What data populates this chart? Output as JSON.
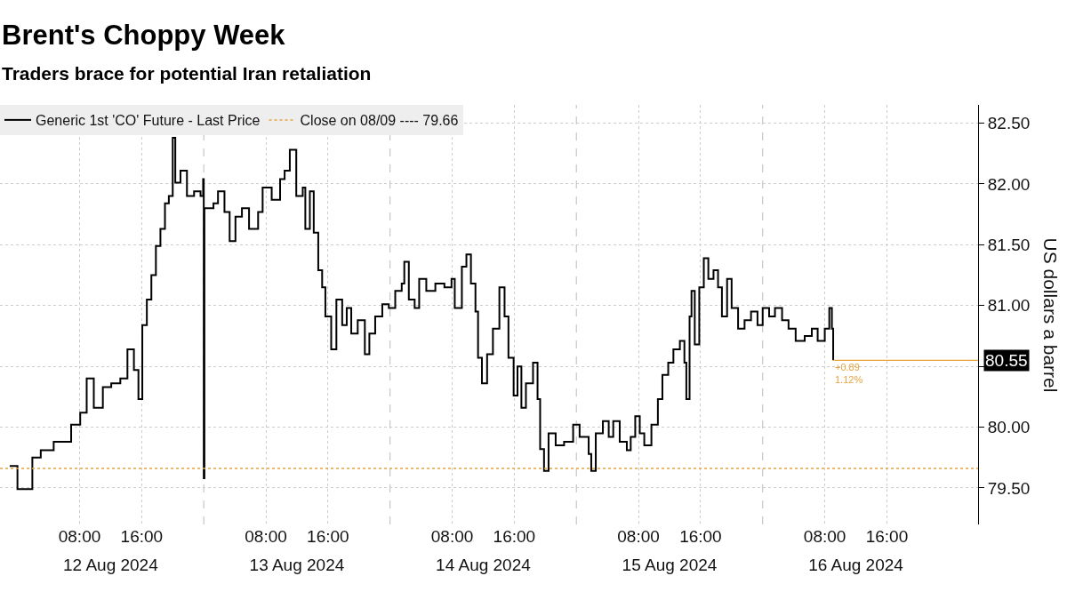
{
  "chart_data": {
    "type": "step",
    "title": "Brent's Choppy Week",
    "subtitle": "Traders brace for potential Iran retaliation",
    "ylabel": "US dollars a barrel",
    "xlim": [
      "2024-08-11T21:45",
      "2024-08-17T03:45"
    ],
    "xticks": [
      {
        "value": "2024-08-12T08:00",
        "label": "08:00"
      },
      {
        "value": "2024-08-12T16:00",
        "label": "16:00"
      },
      {
        "value": "2024-08-13T08:00",
        "label": "08:00"
      },
      {
        "value": "2024-08-13T16:00",
        "label": "16:00"
      },
      {
        "value": "2024-08-14T08:00",
        "label": "08:00"
      },
      {
        "value": "2024-08-14T16:00",
        "label": "16:00"
      },
      {
        "value": "2024-08-15T08:00",
        "label": "08:00"
      },
      {
        "value": "2024-08-15T16:00",
        "label": "16:00"
      },
      {
        "value": "2024-08-16T08:00",
        "label": "08:00"
      },
      {
        "value": "2024-08-16T16:00",
        "label": "16:00"
      }
    ],
    "x2lim": [
      "2024-08-11T21:45",
      "2024-08-17T03:45"
    ],
    "x2ticks": [
      {
        "value": "2024-08-12T12:00",
        "label": "12 Aug 2024"
      },
      {
        "value": "2024-08-13T12:00",
        "label": "13 Aug 2024"
      },
      {
        "value": "2024-08-14T12:00",
        "label": "14 Aug 2024"
      },
      {
        "value": "2024-08-15T12:00",
        "label": "15 Aug 2024"
      },
      {
        "value": "2024-08-16T12:00",
        "label": "16 Aug 2024"
      }
    ],
    "ylim": [
      79.2,
      82.65
    ],
    "yticks": [
      {
        "value": 79.5,
        "label": "79.50"
      },
      {
        "value": 80.0,
        "label": "80.00"
      },
      {
        "value": 80.5,
        "label": null
      },
      {
        "value": 81.0,
        "label": "81.00"
      },
      {
        "value": 81.5,
        "label": "81.50"
      },
      {
        "value": 82.0,
        "label": "82.00"
      },
      {
        "value": 82.5,
        "label": "82.50"
      }
    ],
    "grid": true,
    "legend": "top left",
    "series": [
      {
        "name": "Generic 1st 'CO' Future - Last Price",
        "color": "#000000",
        "x": [
          "2024-08-11T23:00",
          "2024-08-12T00:00",
          "2024-08-12T01:55",
          "2024-08-12T03:00",
          "2024-08-12T04:40",
          "2024-08-12T06:55",
          "2024-08-12T08:05",
          "2024-08-12T08:55",
          "2024-08-12T09:50",
          "2024-08-12T11:00",
          "2024-08-12T12:05",
          "2024-08-12T13:15",
          "2024-08-12T14:10",
          "2024-08-12T15:00",
          "2024-08-12T15:35",
          "2024-08-12T16:05",
          "2024-08-12T16:40",
          "2024-08-12T17:15",
          "2024-08-12T17:50",
          "2024-08-12T18:25",
          "2024-08-12T19:00",
          "2024-08-12T19:30",
          "2024-08-12T20:00",
          "2024-08-12T20:20",
          "2024-08-12T21:00",
          "2024-08-12T21:50",
          "2024-08-12T22:45",
          "2024-08-12T23:35",
          "2024-08-12T23:55",
          "2024-08-13T00:00",
          "2024-08-13T00:05",
          "2024-08-13T01:15",
          "2024-08-13T01:50",
          "2024-08-13T02:40",
          "2024-08-13T03:20",
          "2024-08-13T04:05",
          "2024-08-13T04:55",
          "2024-08-13T05:50",
          "2024-08-13T07:00",
          "2024-08-13T07:35",
          "2024-08-13T08:45",
          "2024-08-13T09:50",
          "2024-08-13T10:25",
          "2024-08-13T11:05",
          "2024-08-13T11:55",
          "2024-08-13T12:45",
          "2024-08-13T13:05",
          "2024-08-13T13:40",
          "2024-08-13T14:10",
          "2024-08-13T14:45",
          "2024-08-13T15:15",
          "2024-08-13T15:40",
          "2024-08-13T16:25",
          "2024-08-13T17:05",
          "2024-08-13T17:50",
          "2024-08-13T18:25",
          "2024-08-13T19:00",
          "2024-08-13T19:50",
          "2024-08-13T20:45",
          "2024-08-13T21:20",
          "2024-08-13T22:05",
          "2024-08-13T23:00",
          "2024-08-13T23:50",
          "2024-08-14T00:40",
          "2024-08-14T01:30",
          "2024-08-14T01:50",
          "2024-08-14T02:25",
          "2024-08-14T03:10",
          "2024-08-14T03:45",
          "2024-08-14T04:40",
          "2024-08-14T05:50",
          "2024-08-14T07:00",
          "2024-08-14T07:55",
          "2024-08-14T08:20",
          "2024-08-14T09:15",
          "2024-08-14T09:50",
          "2024-08-14T10:25",
          "2024-08-14T11:00",
          "2024-08-14T11:20",
          "2024-08-14T11:50",
          "2024-08-14T12:30",
          "2024-08-14T13:15",
          "2024-08-14T14:05",
          "2024-08-14T14:45",
          "2024-08-14T15:15",
          "2024-08-14T15:55",
          "2024-08-14T16:25",
          "2024-08-14T16:55",
          "2024-08-14T17:30",
          "2024-08-14T18:25",
          "2024-08-14T19:00",
          "2024-08-14T19:20",
          "2024-08-14T19:50",
          "2024-08-14T20:25",
          "2024-08-14T21:20",
          "2024-08-14T22:25",
          "2024-08-14T23:35",
          "2024-08-15T00:25",
          "2024-08-15T01:35",
          "2024-08-15T01:55",
          "2024-08-15T02:30",
          "2024-08-15T03:25",
          "2024-08-15T04:10",
          "2024-08-15T04:45",
          "2024-08-15T05:35",
          "2024-08-15T06:30",
          "2024-08-15T07:00",
          "2024-08-15T07:35",
          "2024-08-15T08:10",
          "2024-08-15T08:45",
          "2024-08-15T09:40",
          "2024-08-15T10:30",
          "2024-08-15T11:05",
          "2024-08-15T11:50",
          "2024-08-15T12:30",
          "2024-08-15T13:20",
          "2024-08-15T13:55",
          "2024-08-15T14:10",
          "2024-08-15T14:35",
          "2024-08-15T14:50",
          "2024-08-15T15:15",
          "2024-08-15T15:50",
          "2024-08-15T16:25",
          "2024-08-15T17:00",
          "2024-08-15T17:40",
          "2024-08-15T18:15",
          "2024-08-15T18:45",
          "2024-08-15T19:25",
          "2024-08-15T20:00",
          "2024-08-15T20:50",
          "2024-08-15T21:40",
          "2024-08-15T22:30",
          "2024-08-15T23:20",
          "2024-08-16T00:00",
          "2024-08-16T00:50",
          "2024-08-16T01:35",
          "2024-08-16T02:30",
          "2024-08-16T03:20",
          "2024-08-16T04:15",
          "2024-08-16T05:25",
          "2024-08-16T06:20",
          "2024-08-16T07:05",
          "2024-08-16T08:00",
          "2024-08-16T08:35",
          "2024-08-16T08:55",
          "2024-08-16T09:05"
        ],
        "values": [
          79.68,
          79.49,
          79.75,
          79.81,
          79.88,
          80.02,
          80.12,
          80.4,
          80.16,
          80.33,
          80.36,
          80.4,
          80.64,
          80.47,
          80.23,
          80.84,
          81.05,
          81.25,
          81.49,
          81.63,
          81.84,
          81.9,
          82.38,
          82.01,
          82.11,
          81.9,
          81.94,
          81.9,
          82.04,
          79.58,
          81.8,
          81.84,
          81.94,
          81.77,
          81.53,
          81.73,
          81.8,
          81.63,
          81.77,
          81.97,
          81.87,
          82.04,
          82.11,
          82.28,
          81.9,
          81.97,
          81.63,
          81.94,
          81.6,
          81.29,
          81.15,
          80.91,
          80.64,
          81.05,
          80.84,
          80.98,
          80.77,
          80.88,
          80.6,
          80.77,
          80.91,
          81.01,
          80.98,
          81.12,
          81.18,
          81.36,
          81.05,
          80.98,
          81.22,
          81.12,
          81.18,
          81.15,
          81.22,
          80.98,
          81.32,
          81.42,
          81.18,
          80.95,
          80.57,
          80.36,
          80.6,
          80.81,
          81.15,
          80.91,
          80.57,
          80.26,
          80.5,
          80.16,
          80.36,
          80.53,
          80.23,
          79.82,
          79.64,
          79.95,
          79.85,
          79.88,
          80.02,
          79.92,
          79.78,
          79.64,
          79.95,
          80.05,
          79.92,
          80.05,
          79.88,
          79.81,
          79.92,
          80.09,
          79.95,
          79.85,
          80.02,
          80.23,
          80.43,
          80.53,
          80.64,
          80.71,
          80.53,
          80.23,
          80.91,
          81.12,
          80.68,
          81.15,
          81.39,
          81.22,
          81.29,
          81.15,
          80.91,
          81.22,
          80.98,
          80.81,
          80.88,
          80.95,
          80.84,
          80.98,
          80.91,
          80.98,
          80.88,
          80.81,
          80.71,
          80.75,
          80.81,
          80.71,
          80.81,
          80.98,
          80.81,
          80.55
        ]
      },
      {
        "type": "line",
        "color": "#e8a33d",
        "x": [
          "2024-08-16T09:05",
          "2024-08-17T03:45"
        ],
        "values": [
          80.55,
          80.55
        ]
      }
    ],
    "ref_lines": [
      {
        "axis": "y",
        "value": 79.66,
        "label": "Close on 08/09 ---- 79.66",
        "color": "#e8a33d",
        "line_style": "dotted"
      },
      {
        "axis": "x",
        "value": "2024-08-13T00:00",
        "color": "#bbbbbb",
        "line_style": "dashed"
      },
      {
        "axis": "x",
        "value": "2024-08-14T00:00",
        "color": "#bbbbbb",
        "line_style": "dashed"
      },
      {
        "axis": "x",
        "value": "2024-08-15T00:00",
        "color": "#bbbbbb",
        "line_style": "dashed"
      },
      {
        "axis": "x",
        "value": "2024-08-16T00:00",
        "color": "#bbbbbb",
        "line_style": "dashed"
      }
    ],
    "annotations": [
      {
        "text": "80.55",
        "x": "2024-08-17T03:45",
        "y": 80.55
      },
      {
        "text": "+0.89\n1.12%",
        "x": "2024-08-16T09:05",
        "y": 80.55
      }
    ]
  }
}
